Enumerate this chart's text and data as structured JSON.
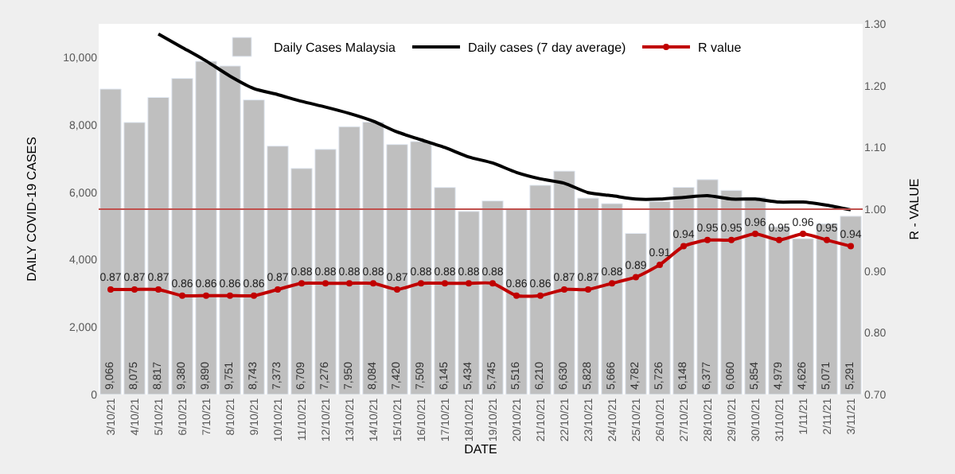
{
  "chart_data": {
    "type": "bar",
    "xlabel": "DATE",
    "ylabel": "DAILY COVID-19 CASES",
    "y2label": "R - VALUE",
    "categories": [
      "3/10/21",
      "4/10/21",
      "5/10/21",
      "6/10/21",
      "7/10/21",
      "8/10/21",
      "9/10/21",
      "10/10/21",
      "11/10/21",
      "12/10/21",
      "13/10/21",
      "14/10/21",
      "15/10/21",
      "16/10/21",
      "17/10/21",
      "18/10/21",
      "19/10/21",
      "20/10/21",
      "21/10/21",
      "22/10/21",
      "23/10/21",
      "24/10/21",
      "25/10/21",
      "26/10/21",
      "27/10/21",
      "28/10/21",
      "29/10/21",
      "30/10/21",
      "31/10/21",
      "1/11/21",
      "2/11/21",
      "3/11/21"
    ],
    "series": [
      {
        "name": "Daily Cases Malaysia",
        "color": "#bfbfbf",
        "values": [
          9066,
          8075,
          8817,
          9380,
          9890,
          9751,
          8743,
          7373,
          6709,
          7276,
          7950,
          8084,
          7420,
          7509,
          6145,
          5434,
          5745,
          5516,
          6210,
          6630,
          5828,
          5666,
          4782,
          5726,
          6148,
          6377,
          6060,
          5854,
          4979,
          4626,
          5071,
          5291
        ],
        "value_labels": [
          "9,066",
          "8,075",
          "8,817",
          "9,380",
          "9,890",
          "9,751",
          "8,743",
          "7,373",
          "6,709",
          "7,276",
          "7,950",
          "8,084",
          "7,420",
          "7,509",
          "6,145",
          "5,434",
          "5,745",
          "5,516",
          "6,210",
          "6,630",
          "5,828",
          "5,666",
          "4,782",
          "5,726",
          "6,148",
          "6,377",
          "6,060",
          "5,854",
          "4,979",
          "4,626",
          "5,071",
          "5,291"
        ]
      },
      {
        "name": "Daily cases (7 day average)",
        "type": "line",
        "color": "#000000",
        "marker": "none",
        "values": [
          null,
          null,
          10700,
          10300,
          9900,
          9450,
          9080,
          8900,
          8700,
          8530,
          8340,
          8110,
          7790,
          7560,
          7330,
          7050,
          6870,
          6590,
          6400,
          6270,
          5990,
          5900,
          5800,
          5800,
          5850,
          5900,
          5800,
          5800,
          5710,
          5710,
          5620,
          5480
        ]
      },
      {
        "name": "R value",
        "type": "line",
        "axis": "y2",
        "color": "#c00000",
        "marker": "circle",
        "values": [
          0.87,
          0.87,
          0.87,
          0.86,
          0.86,
          0.86,
          0.86,
          0.87,
          0.88,
          0.88,
          0.88,
          0.88,
          0.87,
          0.88,
          0.88,
          0.88,
          0.88,
          0.86,
          0.86,
          0.87,
          0.87,
          0.88,
          0.89,
          0.91,
          0.94,
          0.95,
          0.95,
          0.96,
          0.95,
          0.96,
          0.95,
          0.94
        ],
        "value_labels": [
          "0.87",
          "0.87",
          "0.87",
          "0.86",
          "0.86",
          "0.86",
          "0.86",
          "0.87",
          "0.88",
          "0.88",
          "0.88",
          "0.88",
          "0.87",
          "0.88",
          "0.88",
          "0.88",
          "0.88",
          "0.86",
          "0.86",
          "0.87",
          "0.87",
          "0.88",
          "0.89",
          "0.91",
          "0.94",
          "0.95",
          "0.95",
          "0.96",
          "0.95",
          "0.96",
          "0.95",
          "0.94"
        ]
      }
    ],
    "ylim": [
      0,
      11000
    ],
    "yticks": [
      {
        "value": 0,
        "label": "0"
      },
      {
        "value": 2000,
        "label": "2,000"
      },
      {
        "value": 4000,
        "label": "4,000"
      },
      {
        "value": 6000,
        "label": "6,000"
      },
      {
        "value": 8000,
        "label": "8,000"
      },
      {
        "value": 10000,
        "label": "10,000"
      }
    ],
    "y2lim": [
      0.7,
      1.3
    ],
    "y2ticks": [
      {
        "value": 0.7,
        "label": "0.70"
      },
      {
        "value": 0.8,
        "label": "0.80"
      },
      {
        "value": 0.9,
        "label": "0.90"
      },
      {
        "value": 1.0,
        "label": "1.00"
      },
      {
        "value": 1.1,
        "label": "1.10"
      },
      {
        "value": 1.2,
        "label": "1.20"
      },
      {
        "value": 1.3,
        "label": "1.30"
      }
    ],
    "ref_lines": [
      {
        "axis": "y2",
        "value": 1.0,
        "color": "#c0504d"
      }
    ],
    "legend": "top"
  }
}
